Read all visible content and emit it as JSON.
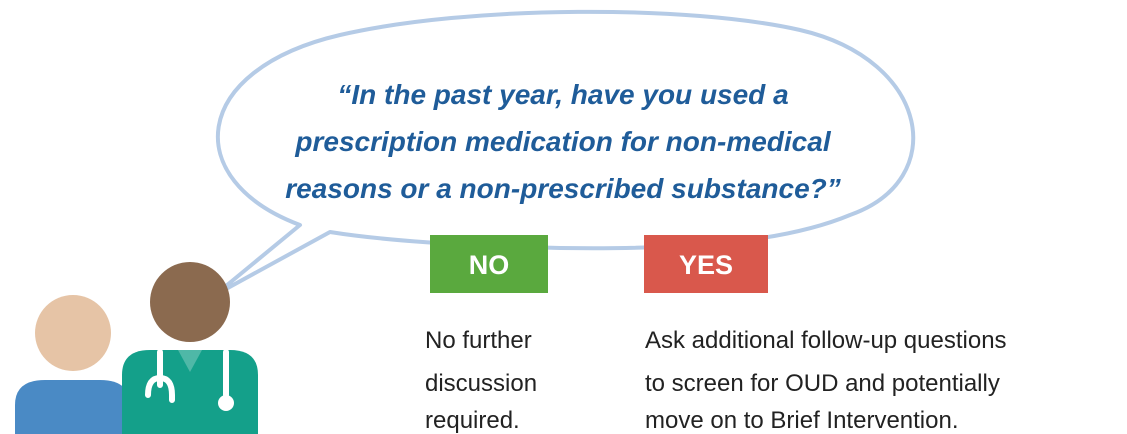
{
  "question": {
    "lines": [
      "“In the past year, have you used a",
      "prescription medication for non-medical",
      "reasons or a non-prescribed substance?”"
    ]
  },
  "options": [
    {
      "label": "NO",
      "description": [
        "No further",
        "discussion",
        "required."
      ]
    },
    {
      "label": "YES",
      "description": [
        "Ask additional follow-up questions",
        "to screen for OUD and potentially",
        "move on to Brief Intervention."
      ]
    }
  ]
}
